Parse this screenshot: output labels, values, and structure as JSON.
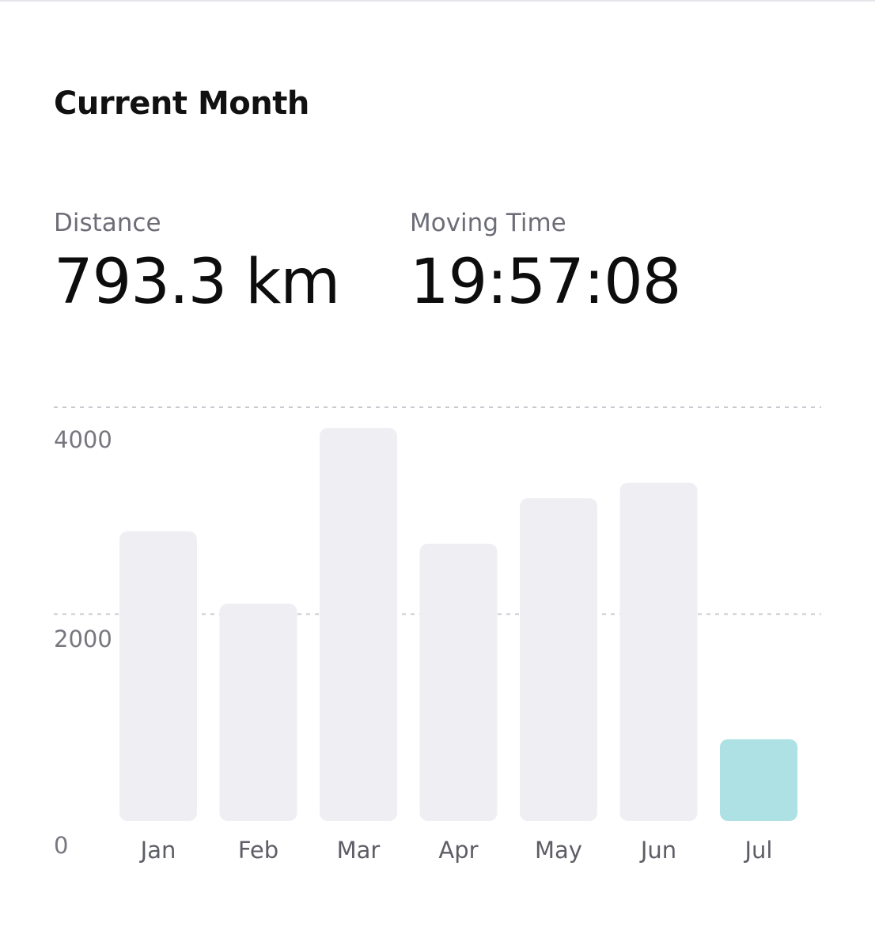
{
  "header": {
    "title": "Current Month"
  },
  "stats": {
    "distance": {
      "label": "Distance",
      "value": "793.3 km"
    },
    "moving_time": {
      "label": "Moving Time",
      "value": "19:57:08"
    }
  },
  "colors": {
    "bar": "#efeff3",
    "bar_current": "#aee1e3",
    "gridline": "#c9c9d0"
  },
  "chart_data": {
    "type": "bar",
    "categories": [
      "Jan",
      "Feb",
      "Mar",
      "Apr",
      "May",
      "Jun",
      "Jul"
    ],
    "values": [
      2800,
      2100,
      3800,
      2680,
      3120,
      3270,
      790
    ],
    "highlight_index": 6,
    "yticks": [
      0,
      2000,
      4000
    ],
    "ylim": [
      0,
      4000
    ],
    "grid": true,
    "grid_style": "dashed"
  }
}
